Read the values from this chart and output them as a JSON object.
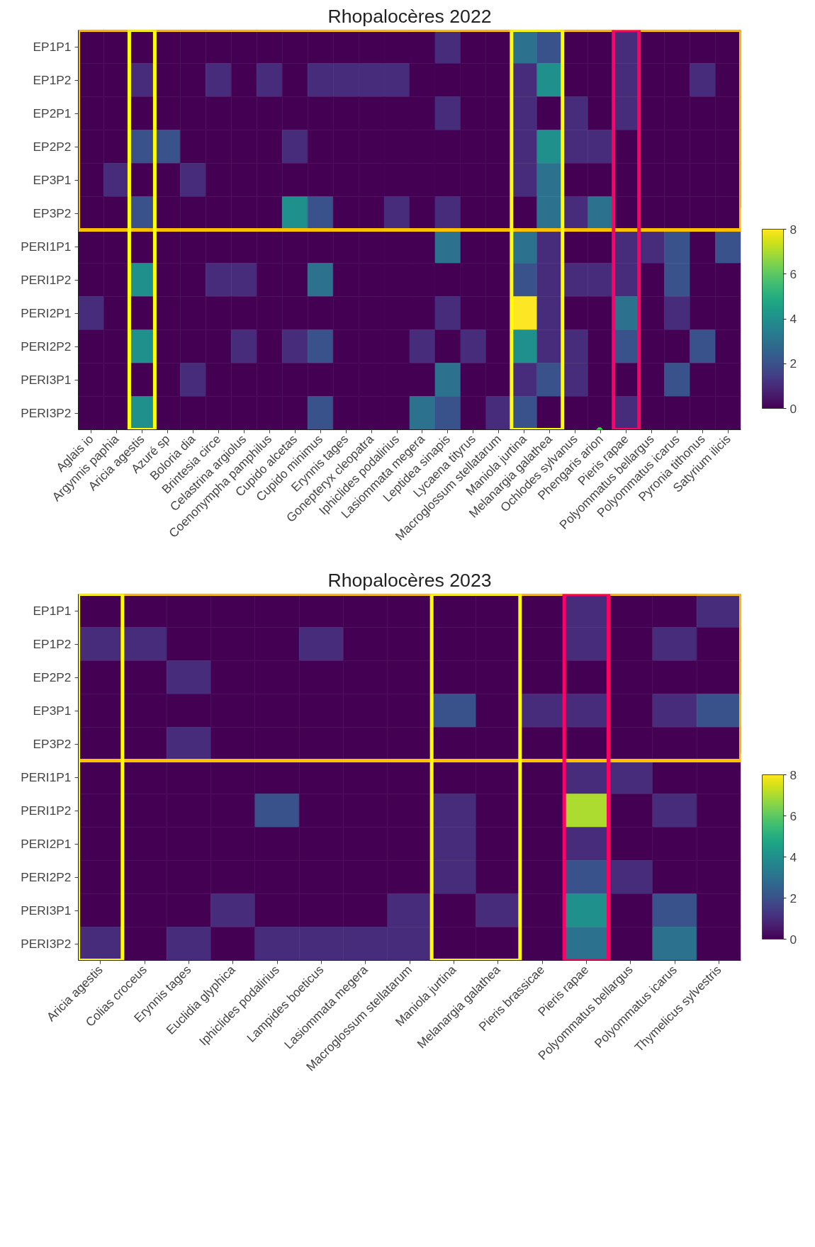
{
  "chart_data": [
    {
      "type": "heatmap",
      "title": "Rhopalocères 2022",
      "categories": [
        "Aglais io",
        "Argynnis paphia",
        "Aricia agestis",
        "Azuré sp",
        "Boloria dia",
        "Brintesia circe",
        "Celastrina argiolus",
        "Coenonympha pamphilus",
        "Cupido alcetas",
        "Cupido minimus",
        "Erynnis tages",
        "Gonepteryx cleopatra",
        "Iphiclides podalirius",
        "Lasiommata megera",
        "Leptidea sinapis",
        "Lycaena tityrus",
        "Macroglossum stellatarum",
        "Maniola jurtina",
        "Melanargia galathea",
        "Ochlodes sylvanus",
        "Phengaris arion",
        "Pieris rapae",
        "Polyommatus bellargus",
        "Polyommatus icarus",
        "Pyronia tithonus",
        "Satyrium ilicis"
      ],
      "y_categories": [
        "EP1P1",
        "EP1P2",
        "EP2P1",
        "EP2P2",
        "EP3P1",
        "EP3P2",
        "PERI1P1",
        "PERI1P2",
        "PERI2P1",
        "PERI2P2",
        "PERI3P1",
        "PERI3P2"
      ],
      "cells": [
        [
          0,
          0,
          0,
          0,
          0,
          0,
          0,
          0,
          0,
          0,
          0,
          0,
          0,
          0,
          1,
          0,
          0,
          3,
          2,
          0,
          0,
          1,
          0,
          0,
          0,
          0
        ],
        [
          0,
          0,
          1,
          0,
          0,
          1,
          0,
          1,
          0,
          1,
          1,
          1,
          1,
          0,
          0,
          0,
          0,
          1,
          4,
          0,
          0,
          1,
          0,
          0,
          1,
          0
        ],
        [
          0,
          0,
          0,
          0,
          0,
          0,
          0,
          0,
          0,
          0,
          0,
          0,
          0,
          0,
          1,
          0,
          0,
          1,
          0,
          1,
          0,
          1,
          0,
          0,
          0,
          0
        ],
        [
          0,
          0,
          2,
          2,
          0,
          0,
          0,
          0,
          1,
          0,
          0,
          0,
          0,
          0,
          0,
          0,
          0,
          1,
          4,
          1,
          1,
          0,
          0,
          0,
          0,
          0
        ],
        [
          0,
          1,
          0,
          0,
          1,
          0,
          0,
          0,
          0,
          0,
          0,
          0,
          0,
          0,
          0,
          0,
          0,
          1,
          3,
          0,
          0,
          0,
          0,
          0,
          0,
          0
        ],
        [
          0,
          0,
          2,
          0,
          0,
          0,
          0,
          0,
          4,
          2,
          0,
          0,
          1,
          0,
          1,
          0,
          0,
          0,
          3,
          1,
          3,
          0,
          0,
          0,
          0,
          0
        ],
        [
          0,
          0,
          0,
          0,
          0,
          0,
          0,
          0,
          0,
          0,
          0,
          0,
          0,
          0,
          3,
          0,
          0,
          3,
          1,
          0,
          0,
          1,
          1,
          2,
          0,
          2
        ],
        [
          0,
          0,
          4,
          0,
          0,
          1,
          1,
          0,
          0,
          3,
          0,
          0,
          0,
          0,
          0,
          0,
          0,
          2,
          1,
          1,
          1,
          1,
          0,
          2,
          0,
          0
        ],
        [
          1,
          0,
          0,
          0,
          0,
          0,
          0,
          0,
          0,
          0,
          0,
          0,
          0,
          0,
          1,
          0,
          0,
          8,
          1,
          0,
          0,
          3,
          0,
          1,
          0,
          0
        ],
        [
          0,
          0,
          4,
          0,
          0,
          0,
          1,
          0,
          1,
          2,
          0,
          0,
          0,
          1,
          0,
          1,
          0,
          4,
          1,
          1,
          0,
          2,
          0,
          0,
          2,
          0
        ],
        [
          0,
          0,
          0,
          0,
          1,
          0,
          0,
          0,
          0,
          0,
          0,
          0,
          0,
          0,
          3,
          0,
          0,
          1,
          2,
          1,
          0,
          0,
          0,
          2,
          0,
          0
        ],
        [
          0,
          0,
          4,
          0,
          0,
          0,
          0,
          0,
          0,
          2,
          0,
          0,
          0,
          3,
          2,
          0,
          1,
          2,
          0,
          0,
          0,
          1,
          0,
          0,
          0,
          0
        ]
      ],
      "clim": [
        0,
        8
      ],
      "cticks": [
        0,
        2,
        4,
        6,
        8
      ]
    },
    {
      "type": "heatmap",
      "title": "Rhopalocères 2023",
      "categories": [
        "Aricia agestis",
        "Colias croceus",
        "Erynnis tages",
        "Euclidia glyphica",
        "Iphiclides podalirius",
        "Lampides boeticus",
        "Lasiommata megera",
        "Macroglossum stellatarum",
        "Maniola jurtina",
        "Melanargia galathea",
        "Pieris brassicae",
        "Pieris rapae",
        "Polyommatus bellargus",
        "Polyommatus icarus",
        "Thymelicus sylvestris"
      ],
      "y_categories": [
        "EP1P1",
        "EP1P2",
        "EP2P2",
        "EP3P1",
        "EP3P2",
        "PERI1P1",
        "PERI1P2",
        "PERI2P1",
        "PERI2P2",
        "PERI3P1",
        "PERI3P2"
      ],
      "cells": [
        [
          0,
          0,
          0,
          0,
          0,
          0,
          0,
          0,
          0,
          0,
          0,
          1,
          0,
          0,
          1
        ],
        [
          1,
          1,
          0,
          0,
          0,
          1,
          0,
          0,
          0,
          0,
          0,
          1,
          0,
          1,
          0
        ],
        [
          0,
          0,
          1,
          0,
          0,
          0,
          0,
          0,
          0,
          0,
          0,
          0,
          0,
          0,
          0
        ],
        [
          0,
          0,
          0,
          0,
          0,
          0,
          0,
          0,
          2,
          0,
          1,
          1,
          0,
          1,
          2
        ],
        [
          0,
          0,
          1,
          0,
          0,
          0,
          0,
          0,
          0,
          0,
          0,
          0,
          0,
          0,
          0
        ],
        [
          0,
          0,
          0,
          0,
          0,
          0,
          0,
          0,
          0,
          0,
          0,
          1,
          1,
          0,
          0
        ],
        [
          0,
          0,
          0,
          0,
          2,
          0,
          0,
          0,
          1,
          0,
          0,
          7,
          0,
          1,
          0
        ],
        [
          0,
          0,
          0,
          0,
          0,
          0,
          0,
          0,
          1,
          0,
          0,
          1,
          0,
          0,
          0
        ],
        [
          0,
          0,
          0,
          0,
          0,
          0,
          0,
          0,
          1,
          0,
          0,
          2,
          1,
          0,
          0
        ],
        [
          0,
          0,
          0,
          1,
          0,
          0,
          0,
          1,
          0,
          1,
          0,
          4,
          0,
          2,
          0
        ],
        [
          1,
          0,
          1,
          0,
          1,
          1,
          1,
          1,
          0,
          0,
          0,
          3,
          0,
          3,
          0
        ]
      ],
      "clim": [
        0,
        8
      ],
      "cticks": [
        0,
        2,
        4,
        6,
        8
      ]
    }
  ]
}
